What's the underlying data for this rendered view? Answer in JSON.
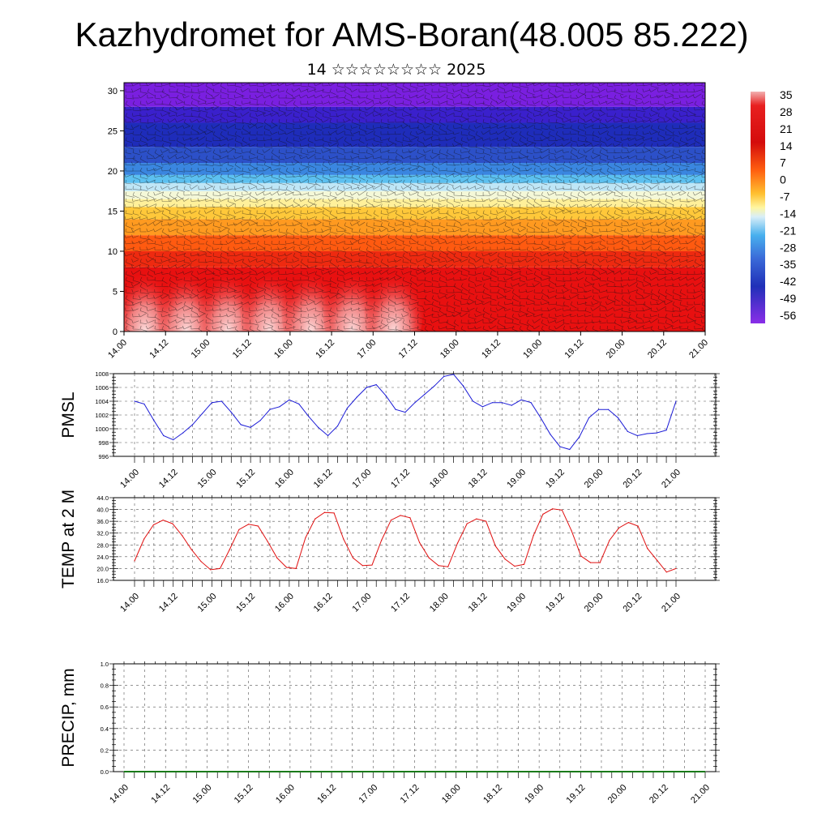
{
  "title": "Kazhydromet for AMS-Boran(48.005 85.222)",
  "subtitle": "14 ☆☆☆☆☆☆☆☆ 2025",
  "chart_data": [
    {
      "type": "heatmap",
      "name": "vertical-cross-section",
      "y_ticks": [
        "0",
        "5",
        "10",
        "15",
        "20",
        "25",
        "30"
      ],
      "ylim": [
        0,
        31
      ],
      "x_ticks": [
        "14.00",
        "14.12",
        "15.00",
        "15.12",
        "16.00",
        "16.12",
        "17.00",
        "17.12",
        "18.00",
        "18.12",
        "19.00",
        "19.12",
        "20.00",
        "20.12",
        "21.00"
      ],
      "colorbar_labels": [
        "35",
        "28",
        "21",
        "14",
        "7",
        "0",
        "-7",
        "-14",
        "-21",
        "-28",
        "-35",
        "-42",
        "-49",
        "-56"
      ],
      "colorbar_range": [
        -63,
        42
      ],
      "palette": [
        "#7a1fe0",
        "#2a1fd0",
        "#2030b8",
        "#3a6ad8",
        "#48b0ee",
        "#d8eef8",
        "#fff6a0",
        "#ffcf40",
        "#ff9420",
        "#ff5010",
        "#ee1010",
        "#d40c0c",
        "#f2b0b0"
      ],
      "warm_cycle_peaks_x": [
        0.5,
        1.5,
        2.5,
        3.5,
        4.5,
        5.5,
        6.5
      ]
    },
    {
      "type": "line",
      "name": "pmsl",
      "ylabel": "PMSL",
      "ylim": [
        996,
        1008
      ],
      "y_ticks": [
        "996",
        "998",
        "1000",
        "1002",
        "1004",
        "1006",
        "1008"
      ],
      "x_ticks": [
        "14.00",
        "14.12",
        "15.00",
        "15.12",
        "16.00",
        "16.12",
        "17.00",
        "17.12",
        "18.00",
        "18.12",
        "19.00",
        "19.12",
        "20.00",
        "20.12",
        "21.00"
      ],
      "color": "#1a1ad6",
      "series": [
        {
          "values": [
            1004.0,
            1003.6,
            1001.2,
            999.0,
            998.4,
            999.4,
            1000.6,
            1002.2,
            1003.8,
            1004.0,
            1002.4,
            1000.6,
            1000.2,
            1001.2,
            1002.8,
            1003.2,
            1004.2,
            1003.6,
            1001.8,
            1000.2,
            999.0,
            1000.4,
            1003.0,
            1004.6,
            1006.0,
            1006.4,
            1004.8,
            1002.8,
            1002.4,
            1003.8,
            1005.0,
            1006.2,
            1007.6,
            1007.9,
            1006.2,
            1004.0,
            1003.2,
            1003.8,
            1003.8,
            1003.4,
            1004.2,
            1003.8,
            1001.6,
            999.2,
            997.4,
            997.0,
            998.8,
            1001.6,
            1002.8,
            1002.8,
            1001.6,
            999.6,
            999.0,
            999.3,
            999.4,
            999.8,
            1004.0
          ]
        }
      ]
    },
    {
      "type": "line",
      "name": "temp-2m",
      "ylabel": "TEMP at 2 M",
      "ylim": [
        16,
        44
      ],
      "y_ticks": [
        "16.0",
        "20.0",
        "24.0",
        "28.0",
        "32.0",
        "36.0",
        "40.0",
        "44.0"
      ],
      "x_ticks": [
        "14.00",
        "14.12",
        "15.00",
        "15.12",
        "16.00",
        "16.12",
        "17.00",
        "17.12",
        "18.00",
        "18.12",
        "19.00",
        "19.12",
        "20.00",
        "20.12",
        "21.00"
      ],
      "color": "#e01010",
      "series": [
        {
          "values": [
            22.6,
            30.0,
            34.8,
            36.4,
            35.2,
            31.2,
            26.4,
            22.4,
            19.6,
            20.0,
            26.4,
            33.2,
            35.0,
            34.4,
            29.2,
            23.6,
            20.4,
            20.0,
            30.4,
            36.8,
            39.0,
            38.8,
            30.0,
            23.6,
            21.0,
            21.2,
            29.6,
            36.4,
            38.0,
            37.2,
            28.8,
            23.6,
            21.0,
            20.6,
            28.6,
            35.2,
            36.8,
            36.0,
            27.6,
            23.2,
            20.8,
            21.4,
            31.2,
            38.4,
            40.2,
            39.8,
            32.8,
            24.2,
            22.0,
            22.0,
            29.6,
            33.8,
            35.6,
            34.4,
            26.8,
            22.8,
            18.8,
            20.0
          ]
        }
      ]
    },
    {
      "type": "line",
      "name": "precip",
      "ylabel": "PRECIP, mm",
      "ylim": [
        0,
        1
      ],
      "y_ticks": [
        "0.0",
        "0.2",
        "0.4",
        "0.6",
        "0.8",
        "1.0"
      ],
      "x_ticks": [
        "14.00",
        "14.12",
        "15.00",
        "15.12",
        "16.00",
        "16.12",
        "17.00",
        "17.12",
        "18.00",
        "18.12",
        "19.00",
        "19.12",
        "20.00",
        "20.12",
        "21.00"
      ],
      "color": "#1a7a1a",
      "series": [
        {
          "values": [
            0,
            0,
            0,
            0,
            0,
            0,
            0,
            0,
            0,
            0,
            0,
            0,
            0,
            0,
            0,
            0,
            0,
            0,
            0,
            0,
            0,
            0,
            0,
            0,
            0,
            0,
            0,
            0,
            0,
            0,
            0,
            0,
            0,
            0,
            0,
            0,
            0,
            0,
            0,
            0,
            0,
            0,
            0,
            0,
            0,
            0,
            0,
            0,
            0,
            0,
            0,
            0,
            0,
            0,
            0,
            0,
            0
          ]
        }
      ]
    }
  ]
}
